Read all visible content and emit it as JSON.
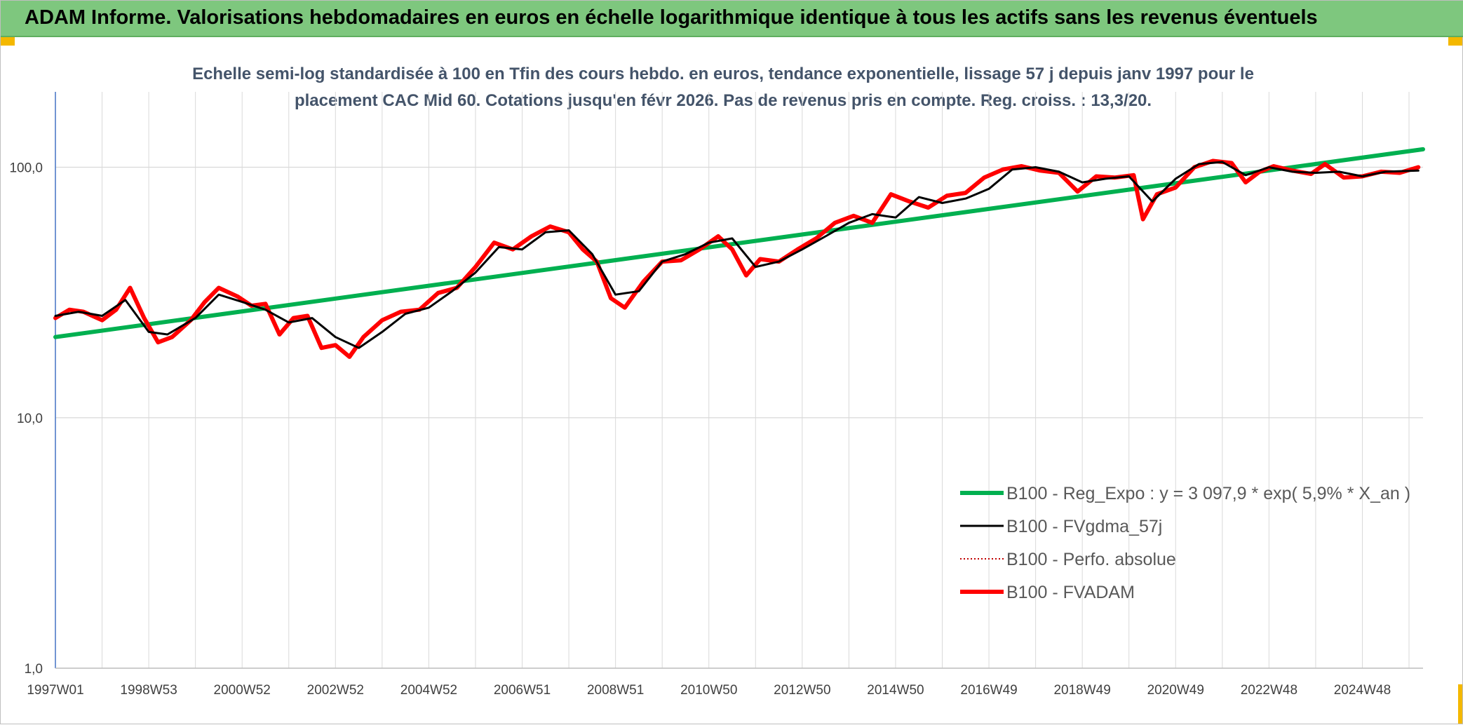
{
  "header": {
    "title": "ADAM Informe. Valorisations hebdomadaires en euros en échelle logarithmique identique à tous les actifs sans les revenus éventuels"
  },
  "chart_data": {
    "type": "line",
    "title_line1": "Echelle semi-log standardisée à 100 en Tfin des cours hebdo. en euros, tendance exponentielle, lissage 57 j depuis janv 1997 pour le",
    "title_line2": "placement CAC Mid 60. Cotations jusqu'en févr 2026. Pas de revenus pris en compte. Reg. croiss. : 13,3/20.",
    "y_scale": "log",
    "ylim": [
      1,
      200
    ],
    "xlim": [
      1997.0,
      2026.3
    ],
    "y_ticks": [
      {
        "value": 1,
        "label": "1,0"
      },
      {
        "value": 10,
        "label": "10,0"
      },
      {
        "value": 100,
        "label": "100,0"
      }
    ],
    "x_ticks": [
      {
        "x": 1997.0,
        "label": "1997W01"
      },
      {
        "x": 1999.0,
        "label": "1998W53"
      },
      {
        "x": 2001.0,
        "label": "2000W52"
      },
      {
        "x": 2003.0,
        "label": "2002W52"
      },
      {
        "x": 2005.0,
        "label": "2004W52"
      },
      {
        "x": 2007.0,
        "label": "2006W51"
      },
      {
        "x": 2009.0,
        "label": "2008W51"
      },
      {
        "x": 2011.0,
        "label": "2010W50"
      },
      {
        "x": 2013.0,
        "label": "2012W50"
      },
      {
        "x": 2015.0,
        "label": "2014W50"
      },
      {
        "x": 2017.0,
        "label": "2016W49"
      },
      {
        "x": 2019.0,
        "label": "2018W49"
      },
      {
        "x": 2021.0,
        "label": "2020W49"
      },
      {
        "x": 2023.0,
        "label": "2022W48"
      },
      {
        "x": 2025.0,
        "label": "2024W48"
      }
    ],
    "grid": true,
    "legend_position": "bottom-right",
    "series": [
      {
        "name": "B100 - Reg_Expo : y = 3 097,9 * exp( 5,9% *  X_an )",
        "color": "#00b050",
        "style": "solid-thick",
        "x": [
          1997.0,
          2026.3
        ],
        "y": [
          21.0,
          118.0
        ]
      },
      {
        "name": "B100 - FVgdma_57j",
        "color": "#000000",
        "style": "solid",
        "x": [
          1997.0,
          1997.5,
          1998.0,
          1998.5,
          1999.0,
          1999.4,
          2000.0,
          2000.5,
          2001.0,
          2001.5,
          2002.0,
          2002.5,
          2003.0,
          2003.5,
          2004.0,
          2004.5,
          2005.0,
          2005.5,
          2006.0,
          2006.5,
          2007.0,
          2007.5,
          2008.0,
          2008.5,
          2009.0,
          2009.5,
          2010.0,
          2010.5,
          2011.0,
          2011.5,
          2012.0,
          2012.5,
          2013.0,
          2013.5,
          2014.0,
          2014.5,
          2015.0,
          2015.5,
          2016.0,
          2016.5,
          2017.0,
          2017.5,
          2018.0,
          2018.5,
          2019.0,
          2019.5,
          2020.0,
          2020.5,
          2021.0,
          2021.5,
          2022.0,
          2022.5,
          2023.0,
          2023.5,
          2024.0,
          2024.5,
          2025.0,
          2025.5,
          2026.2
        ],
        "y": [
          25.5,
          26.5,
          25.5,
          29.5,
          22.0,
          21.5,
          25.0,
          31.0,
          29.0,
          27.0,
          24.0,
          25.0,
          21.0,
          19.0,
          22.0,
          26.0,
          27.5,
          32.0,
          38.0,
          48.0,
          47.0,
          55.0,
          56.0,
          45.0,
          31.0,
          32.0,
          42.0,
          45.0,
          50.0,
          52.0,
          40.0,
          42.0,
          47.0,
          53.0,
          60.0,
          65.0,
          63.0,
          76.0,
          72.0,
          75.0,
          82.0,
          98.0,
          100.0,
          96.0,
          87.0,
          90.0,
          92.0,
          73.0,
          90.0,
          103.0,
          105.0,
          93.0,
          100.0,
          96.0,
          95.0,
          96.0,
          92.0,
          96.0,
          97.0
        ]
      },
      {
        "name": "B100 - Perfo. absolue",
        "color": "#c00000",
        "style": "dotted",
        "x": [],
        "y": []
      },
      {
        "name": "B100 - FVADAM",
        "color": "#ff0000",
        "style": "solid-thick",
        "x": [
          1997.0,
          1997.3,
          1997.6,
          1998.0,
          1998.3,
          1998.6,
          1998.9,
          1999.2,
          1999.5,
          1999.9,
          2000.2,
          2000.5,
          2000.9,
          2001.2,
          2001.5,
          2001.8,
          2002.1,
          2002.4,
          2002.7,
          2003.0,
          2003.3,
          2003.6,
          2004.0,
          2004.4,
          2004.8,
          2005.2,
          2005.6,
          2006.0,
          2006.4,
          2006.8,
          2007.2,
          2007.6,
          2008.0,
          2008.3,
          2008.6,
          2008.9,
          2009.2,
          2009.6,
          2010.0,
          2010.4,
          2010.8,
          2011.2,
          2011.5,
          2011.8,
          2012.1,
          2012.5,
          2012.9,
          2013.3,
          2013.7,
          2014.1,
          2014.5,
          2014.9,
          2015.3,
          2015.7,
          2016.1,
          2016.5,
          2016.9,
          2017.3,
          2017.7,
          2018.1,
          2018.5,
          2018.9,
          2019.3,
          2019.7,
          2020.1,
          2020.3,
          2020.6,
          2021.0,
          2021.4,
          2021.8,
          2022.2,
          2022.5,
          2022.8,
          2023.1,
          2023.5,
          2023.9,
          2024.2,
          2024.6,
          2025.0,
          2025.4,
          2025.8,
          2026.2
        ],
        "y": [
          25.0,
          27.0,
          26.5,
          24.5,
          27.0,
          33.0,
          25.0,
          20.0,
          21.0,
          24.5,
          29.0,
          33.0,
          30.5,
          28.0,
          28.5,
          21.5,
          25.0,
          25.5,
          19.0,
          19.5,
          17.5,
          21.0,
          24.5,
          26.5,
          27.0,
          31.5,
          33.0,
          40.0,
          50.0,
          47.0,
          53.0,
          58.0,
          55.0,
          47.0,
          42.0,
          30.0,
          27.5,
          35.0,
          42.0,
          42.5,
          47.0,
          53.0,
          47.0,
          37.0,
          43.0,
          42.0,
          47.0,
          52.0,
          60.0,
          64.0,
          60.0,
          78.0,
          73.0,
          69.0,
          77.0,
          79.0,
          91.0,
          98.0,
          101.0,
          97.0,
          95.0,
          80.0,
          92.0,
          91.0,
          93.0,
          62.0,
          78.0,
          83.0,
          100.0,
          106.0,
          104.0,
          87.0,
          96.0,
          101.0,
          97.0,
          94.0,
          103.0,
          91.0,
          92.0,
          96.0,
          95.0,
          100.0
        ]
      }
    ]
  }
}
